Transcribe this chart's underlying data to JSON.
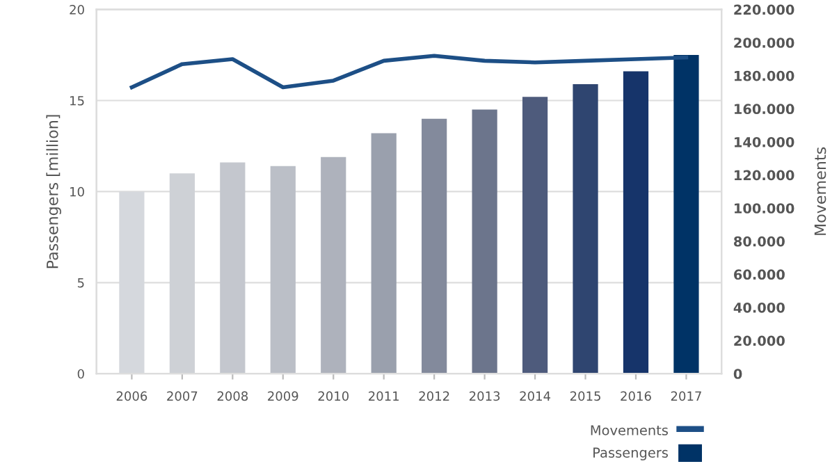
{
  "chart_data": {
    "type": "bar",
    "ylabel": "Passengers [million]",
    "y2label": "Movements",
    "categories": [
      "2006",
      "2007",
      "2008",
      "2009",
      "2010",
      "2011",
      "2012",
      "2013",
      "2014",
      "2015",
      "2016",
      "2017"
    ],
    "series": [
      {
        "name": "Passengers",
        "color": "#003366",
        "colors": [
          "#d5d8dd",
          "#ced1d6",
          "#c4c7ce",
          "#bbbfc7",
          "#aeb2bc",
          "#9aa0ad",
          "#838a9c",
          "#6c758c",
          "#4e5b7c",
          "#2f4570",
          "#16346a",
          "#003366"
        ],
        "values": [
          10.0,
          11.0,
          11.6,
          11.4,
          11.9,
          13.2,
          14.0,
          14.5,
          15.2,
          15.9,
          16.6,
          17.5
        ]
      },
      {
        "name": "Movements",
        "type": "line",
        "axis": "y2",
        "color": "#1d4f86",
        "values": [
          173000,
          187000,
          190000,
          173000,
          177000,
          189000,
          192000,
          189000,
          188000,
          189000,
          190000,
          191000
        ]
      }
    ],
    "ylim": [
      0,
      20
    ],
    "yticks": [
      0,
      5,
      10,
      15,
      20
    ],
    "y2lim": [
      0,
      220000
    ],
    "y2ticks": [
      {
        "value": 0,
        "label": "0"
      },
      {
        "value": 20000,
        "label": "20.000"
      },
      {
        "value": 40000,
        "label": "40.000"
      },
      {
        "value": 60000,
        "label": "60.000"
      },
      {
        "value": 80000,
        "label": "80.000"
      },
      {
        "value": 100000,
        "label": "100.000"
      },
      {
        "value": 120000,
        "label": "120.000"
      },
      {
        "value": 140000,
        "label": "140.000"
      },
      {
        "value": 160000,
        "label": "160.000"
      },
      {
        "value": 180000,
        "label": "180.000"
      },
      {
        "value": 200000,
        "label": "200.000"
      },
      {
        "value": 220000,
        "label": "220.000"
      }
    ],
    "grid": "y",
    "legend": "bottom right",
    "marker": "none",
    "line_style": "solid"
  }
}
